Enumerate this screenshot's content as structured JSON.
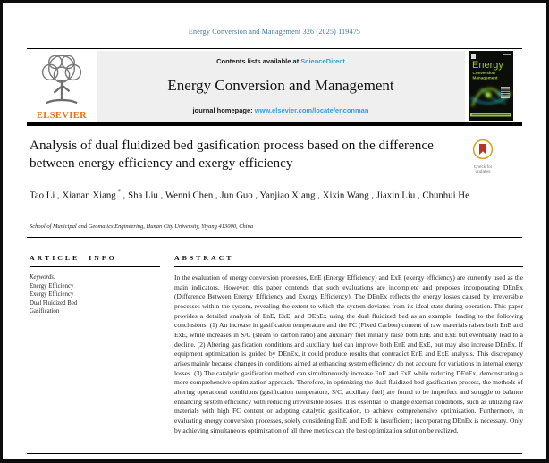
{
  "masthead": {
    "journal_ref": "Energy Conversion and Management 326 (2025) 119475",
    "contents_prefix": "Contents lists available at",
    "sciencedirect_label": "ScienceDirect",
    "journal_title": "Energy Conversion and Management",
    "homepage_prefix": "journal homepage:",
    "homepage_url": "www.elsevier.com/locate/enconman",
    "elsevier_label": "ELSEVIER",
    "cover": {
      "title_line1": "Energy",
      "title_line2": "Conversion",
      "title_line3": "Management"
    }
  },
  "article": {
    "title": "Analysis of dual fluidized bed gasification process based on the difference between energy efficiency and exergy efficiency",
    "authors": [
      {
        "name": "Tao Li",
        "marker": ""
      },
      {
        "name": "Xianan Xiang",
        "marker": "*"
      },
      {
        "name": "Sha Liu",
        "marker": ""
      },
      {
        "name": "Wenni Chen",
        "marker": ""
      },
      {
        "name": "Jun Guo",
        "marker": ""
      },
      {
        "name": "Yanjiao Xiang",
        "marker": ""
      },
      {
        "name": "Xixin Wang",
        "marker": ""
      },
      {
        "name": "Jiaxin Liu",
        "marker": ""
      },
      {
        "name": "Chunhui He",
        "marker": ""
      }
    ],
    "affiliation": "School of Municipal and Geomatics Engineering, Hunan City University, Yiyang 413000, China",
    "crossmark_label": "Check for updates"
  },
  "article_info": {
    "heading": "ARTICLE INFO",
    "keywords_label": "Keywords:",
    "keywords": [
      "Energy Efficiency",
      "Exergy Efficiency",
      "Dual Fluidized Bed",
      "Gasification"
    ]
  },
  "abstract": {
    "heading": "ABSTRACT",
    "text": "In the evaluation of energy conversion processes, EnE (Energy Efficiency) and ExE (exergy efficiency) are currently used as the main indicators. However, this paper contends that such evaluations are incomplete and proposes incorporating DEnEx (Difference Between Energy Efficiency and Exergy Efficiency). The DEnEx reflects the energy losses caused by irreversible processes within the system, revealing the extent to which the system deviates from its ideal state during operation. This paper provides a detailed analysis of EnE, ExE, and DEnEx using the dual fluidized bed as an example, leading to the following conclusions: (1) An increase in gasification temperature and the FC (Fixed Carbon) content of raw materials raises both EnE and ExE, while increases in S/C (steam to carbon ratio) and auxiliary fuel initially raise both EnE and ExE but eventually lead to a decline. (2) Altering gasification conditions and auxiliary fuel can improve both EnE and ExE, but may also increase DEnEx. If equipment optimization is guided by DEnEx, it could produce results that contradict EnE and ExE analysis. This discrepancy arises mainly because changes in conditions aimed at enhancing system efficiency do not account for variations in internal exergy losses. (3) The catalytic gasification method can simultaneously increase EnE and ExE while reducing DEnEx, demonstrating a more comprehensive optimization approach. Therefore, in optimizing the dual fluidized bed gasification process, the methods of altering operational conditions (gasification temperature, S/C, auxiliary fuel) are found to be imperfect and struggle to balance enhancing system efficiency with reducing irreversible losses. It is essential to change external conditions, such as utilizing raw materials with high FC content or adopting catalytic gasification, to achieve comprehensive optimization. Furthermore, in evaluating energy conversion processes, solely considering EnE and ExE is insufficient; incorporating DEnEx is necessary. Only by achieving simultaneous optimization of all three metrics can the best optimization solution be realized."
  },
  "colors": {
    "journal_ref_teal": "#3d7a99",
    "link_blue": "#3a9dd8",
    "elsevier_orange": "#e8731a",
    "cover_green": "#9dc33c",
    "crossmark_red": "#b5342d",
    "header_box_gray": "#efefef"
  }
}
